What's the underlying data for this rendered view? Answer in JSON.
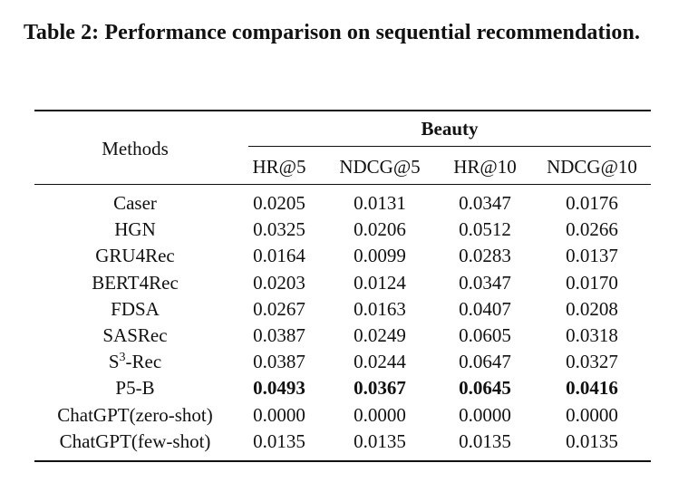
{
  "caption": "Table 2: Performance comparison on sequential recommendation.",
  "table": {
    "methods_header": "Methods",
    "group_header": "Beauty",
    "metric_headers": [
      "HR@5",
      "NDCG@5",
      "HR@10",
      "NDCG@10"
    ],
    "rows": [
      {
        "method": "Caser",
        "values": [
          "0.0205",
          "0.0131",
          "0.0347",
          "0.0176"
        ],
        "bold": false
      },
      {
        "method": "HGN",
        "values": [
          "0.0325",
          "0.0206",
          "0.0512",
          "0.0266"
        ],
        "bold": false
      },
      {
        "method": "GRU4Rec",
        "values": [
          "0.0164",
          "0.0099",
          "0.0283",
          "0.0137"
        ],
        "bold": false
      },
      {
        "method": "BERT4Rec",
        "values": [
          "0.0203",
          "0.0124",
          "0.0347",
          "0.0170"
        ],
        "bold": false
      },
      {
        "method": "FDSA",
        "values": [
          "0.0267",
          "0.0163",
          "0.0407",
          "0.0208"
        ],
        "bold": false
      },
      {
        "method": "SASRec",
        "values": [
          "0.0387",
          "0.0249",
          "0.0605",
          "0.0318"
        ],
        "bold": false
      },
      {
        "method": "S",
        "method_sup": "3",
        "method_suffix": "-Rec",
        "values": [
          "0.0387",
          "0.0244",
          "0.0647",
          "0.0327"
        ],
        "bold": false
      },
      {
        "method": "P5-B",
        "values": [
          "0.0493",
          "0.0367",
          "0.0645",
          "0.0416"
        ],
        "bold": true
      },
      {
        "method": "ChatGPT(zero-shot)",
        "values": [
          "0.0000",
          "0.0000",
          "0.0000",
          "0.0000"
        ],
        "bold": false
      },
      {
        "method": "ChatGPT(few-shot)",
        "values": [
          "0.0135",
          "0.0135",
          "0.0135",
          "0.0135"
        ],
        "bold": false
      }
    ]
  }
}
